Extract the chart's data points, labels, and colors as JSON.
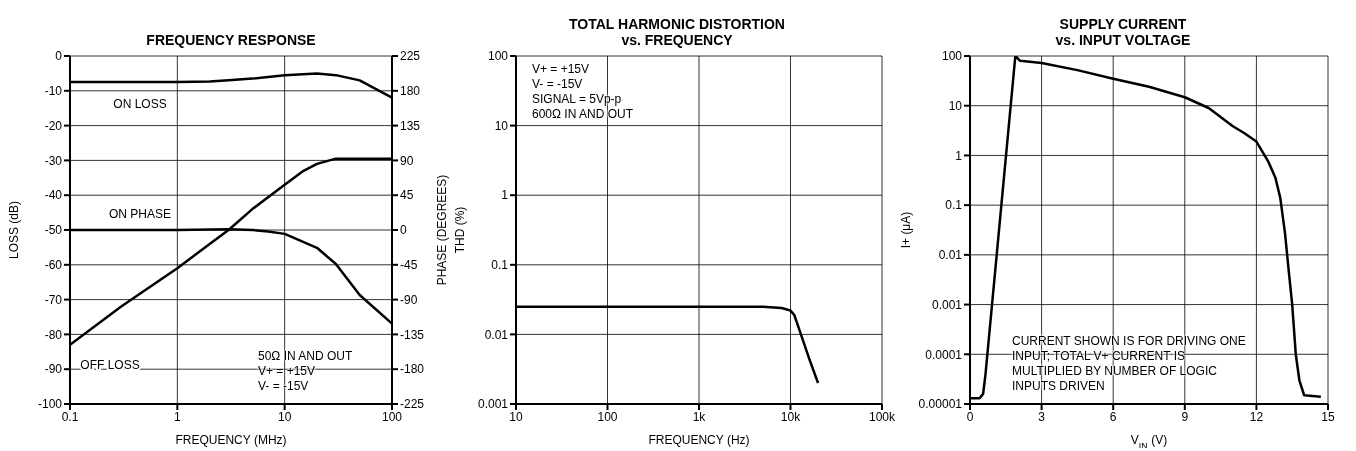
{
  "chart_data": [
    {
      "type": "line",
      "title": "FREQUENCY RESPONSE",
      "xlabel": "FREQUENCY (MHz)",
      "ylabel": "LOSS (dB)",
      "y2label": "PHASE (DEGREES)",
      "log": "x",
      "grid": true,
      "xlim": [
        0.1,
        100
      ],
      "xticks": [
        0.1,
        1,
        10,
        100
      ],
      "ylim": [
        -100,
        0
      ],
      "yticks": [
        -100,
        -90,
        -80,
        -70,
        -60,
        -50,
        -40,
        -30,
        -20,
        -10,
        0
      ],
      "y2lim": [
        -225,
        225
      ],
      "y2ticks": [
        -225,
        -180,
        -135,
        -90,
        -45,
        0,
        45,
        90,
        135,
        180,
        225
      ],
      "series": [
        {
          "name": "ON LOSS",
          "color": "#000000",
          "x": [
            0.1,
            0.3,
            1,
            2,
            3,
            5,
            10,
            20,
            30,
            50,
            100
          ],
          "values": [
            -7.5,
            -7.5,
            -7.5,
            -7.3,
            -7,
            -6.5,
            -5.5,
            -5,
            -5.5,
            -7,
            -12
          ]
        },
        {
          "name": "ON PHASE",
          "color": "#000000",
          "axis": "y2",
          "x": [
            0.1,
            0.3,
            1,
            3,
            5,
            7,
            10,
            20,
            30,
            50,
            100
          ],
          "values": [
            0,
            0,
            0,
            1,
            0,
            -2,
            -5,
            -23,
            -44,
            -84,
            -121
          ]
        },
        {
          "name": "OFF LOSS",
          "color": "#000000",
          "x": [
            0.1,
            0.3,
            1,
            2,
            3,
            5,
            10,
            15,
            20,
            30,
            50,
            100
          ],
          "values": [
            -83,
            -72,
            -61,
            -54,
            -50,
            -44,
            -37,
            -33,
            -31,
            -29.5,
            -29.5,
            -29.5
          ]
        }
      ],
      "annotations": [
        "50Ω IN AND OUT",
        "V+ = +15V",
        "V- = -15V"
      ]
    },
    {
      "type": "line",
      "title": "TOTAL HARMONIC DISTORTION\nvs. FREQUENCY",
      "xlabel": "FREQUENCY (Hz)",
      "ylabel": "THD (%)",
      "log": "xy",
      "grid": true,
      "xlim": [
        10,
        100000
      ],
      "xticks": [
        10,
        100,
        {
          "value": 1000,
          "label": "1k"
        },
        {
          "value": 10000,
          "label": "10k"
        },
        {
          "value": 100000,
          "label": "100k"
        }
      ],
      "ylim": [
        0.001,
        100
      ],
      "yticks": [
        0.001,
        0.01,
        0.1,
        1,
        10,
        100
      ],
      "series": [
        {
          "color": "#000000",
          "x": [
            10,
            100,
            1000,
            5000,
            8000,
            10000,
            11000,
            13000,
            16000,
            20000
          ],
          "values": [
            0.025,
            0.025,
            0.025,
            0.025,
            0.024,
            0.022,
            0.019,
            0.01,
            0.0045,
            0.002
          ]
        }
      ],
      "annotations": [
        "V+ = +15V",
        "V- = -15V",
        "SIGNAL = 5Vp-p",
        "600Ω IN AND OUT"
      ]
    },
    {
      "type": "line",
      "title": "SUPPLY CURRENT\nvs. INPUT VOLTAGE",
      "xlabel": "V$_{IN}$ (V)",
      "ylabel": "I+ (μA)",
      "log": "y",
      "grid": true,
      "xlim": [
        0,
        15
      ],
      "xticks": [
        0,
        3,
        6,
        9,
        12,
        15
      ],
      "ylim": [
        1e-05,
        100
      ],
      "yticks": [
        {
          "value": 1e-05,
          "label": "0.00001"
        },
        {
          "value": 0.0001,
          "label": "0.0001"
        },
        0.001,
        0.01,
        0.1,
        1,
        10,
        100
      ],
      "series": [
        {
          "color": "#000000",
          "x": [
            0,
            0.4,
            0.55,
            0.65,
            1.9,
            2.1,
            3,
            4.5,
            6,
            7.5,
            9,
            10,
            11,
            11.5,
            12,
            12.5,
            12.8,
            13,
            13.2,
            13.35,
            13.5,
            13.65,
            13.8,
            14,
            14.7
          ],
          "values": [
            1.3e-05,
            1.3e-05,
            1.6e-05,
            4e-05,
            100,
            80,
            72,
            52,
            35,
            24,
            14.8,
            9,
            3.9,
            2.8,
            1.9,
            0.75,
            0.35,
            0.14,
            0.027,
            0.005,
            0.001,
            0.0001,
            3e-05,
            1.5e-05,
            1.4e-05
          ]
        }
      ],
      "annotations": [
        "CURRENT SHOWN IS FOR DRIVING ONE INPUT; TOTAL V+ CURRENT IS MULTIPLIED BY NUMBER OF LOGIC INPUTS DRIVEN"
      ]
    }
  ]
}
